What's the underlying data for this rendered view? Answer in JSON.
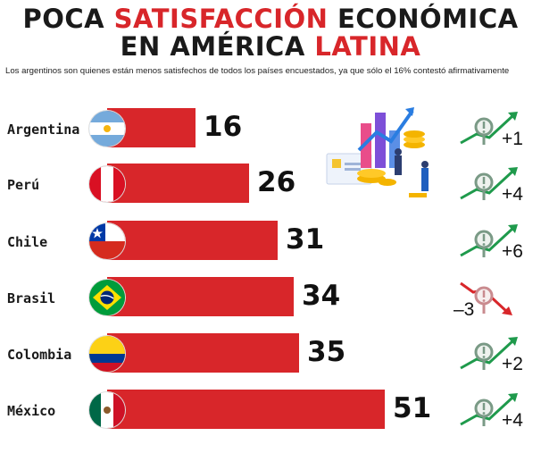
{
  "title": {
    "line1_part1": "POCA ",
    "line1_highlight": "SATISFACCIÓN",
    "line1_part2": " ECONÓMICA",
    "line2_part1": "EN AMÉRICA ",
    "line2_highlight": "LATINA"
  },
  "subtitle": "Los argentinos son quienes están menos satisfechos de todos los países encuestados, ya que sólo el 16% contestó afirmativamente",
  "colors": {
    "bar": "#d8262a",
    "up": "#1f9a4c",
    "down": "#d8262a"
  },
  "chart_data": {
    "type": "bar",
    "orientation": "horizontal",
    "title": "POCA SATISFACCIÓN ECONÓMICA EN AMÉRICA LATINA",
    "categories": [
      "Argentina",
      "Perú",
      "Chile",
      "Brasil",
      "Colombia",
      "México"
    ],
    "values": [
      16,
      26,
      31,
      34,
      35,
      51
    ],
    "changes": [
      "+1",
      "+4",
      "+6",
      "–3",
      "+2",
      "+4"
    ],
    "change_direction": [
      "up",
      "up",
      "up",
      "down",
      "up",
      "up"
    ],
    "value_labels": [
      "16",
      "26",
      "31",
      "34",
      "35",
      "51"
    ],
    "flags": [
      "argentina-flag",
      "peru-flag",
      "chile-flag",
      "brazil-flag",
      "colombia-flag",
      "mexico-flag"
    ],
    "grid": false
  }
}
